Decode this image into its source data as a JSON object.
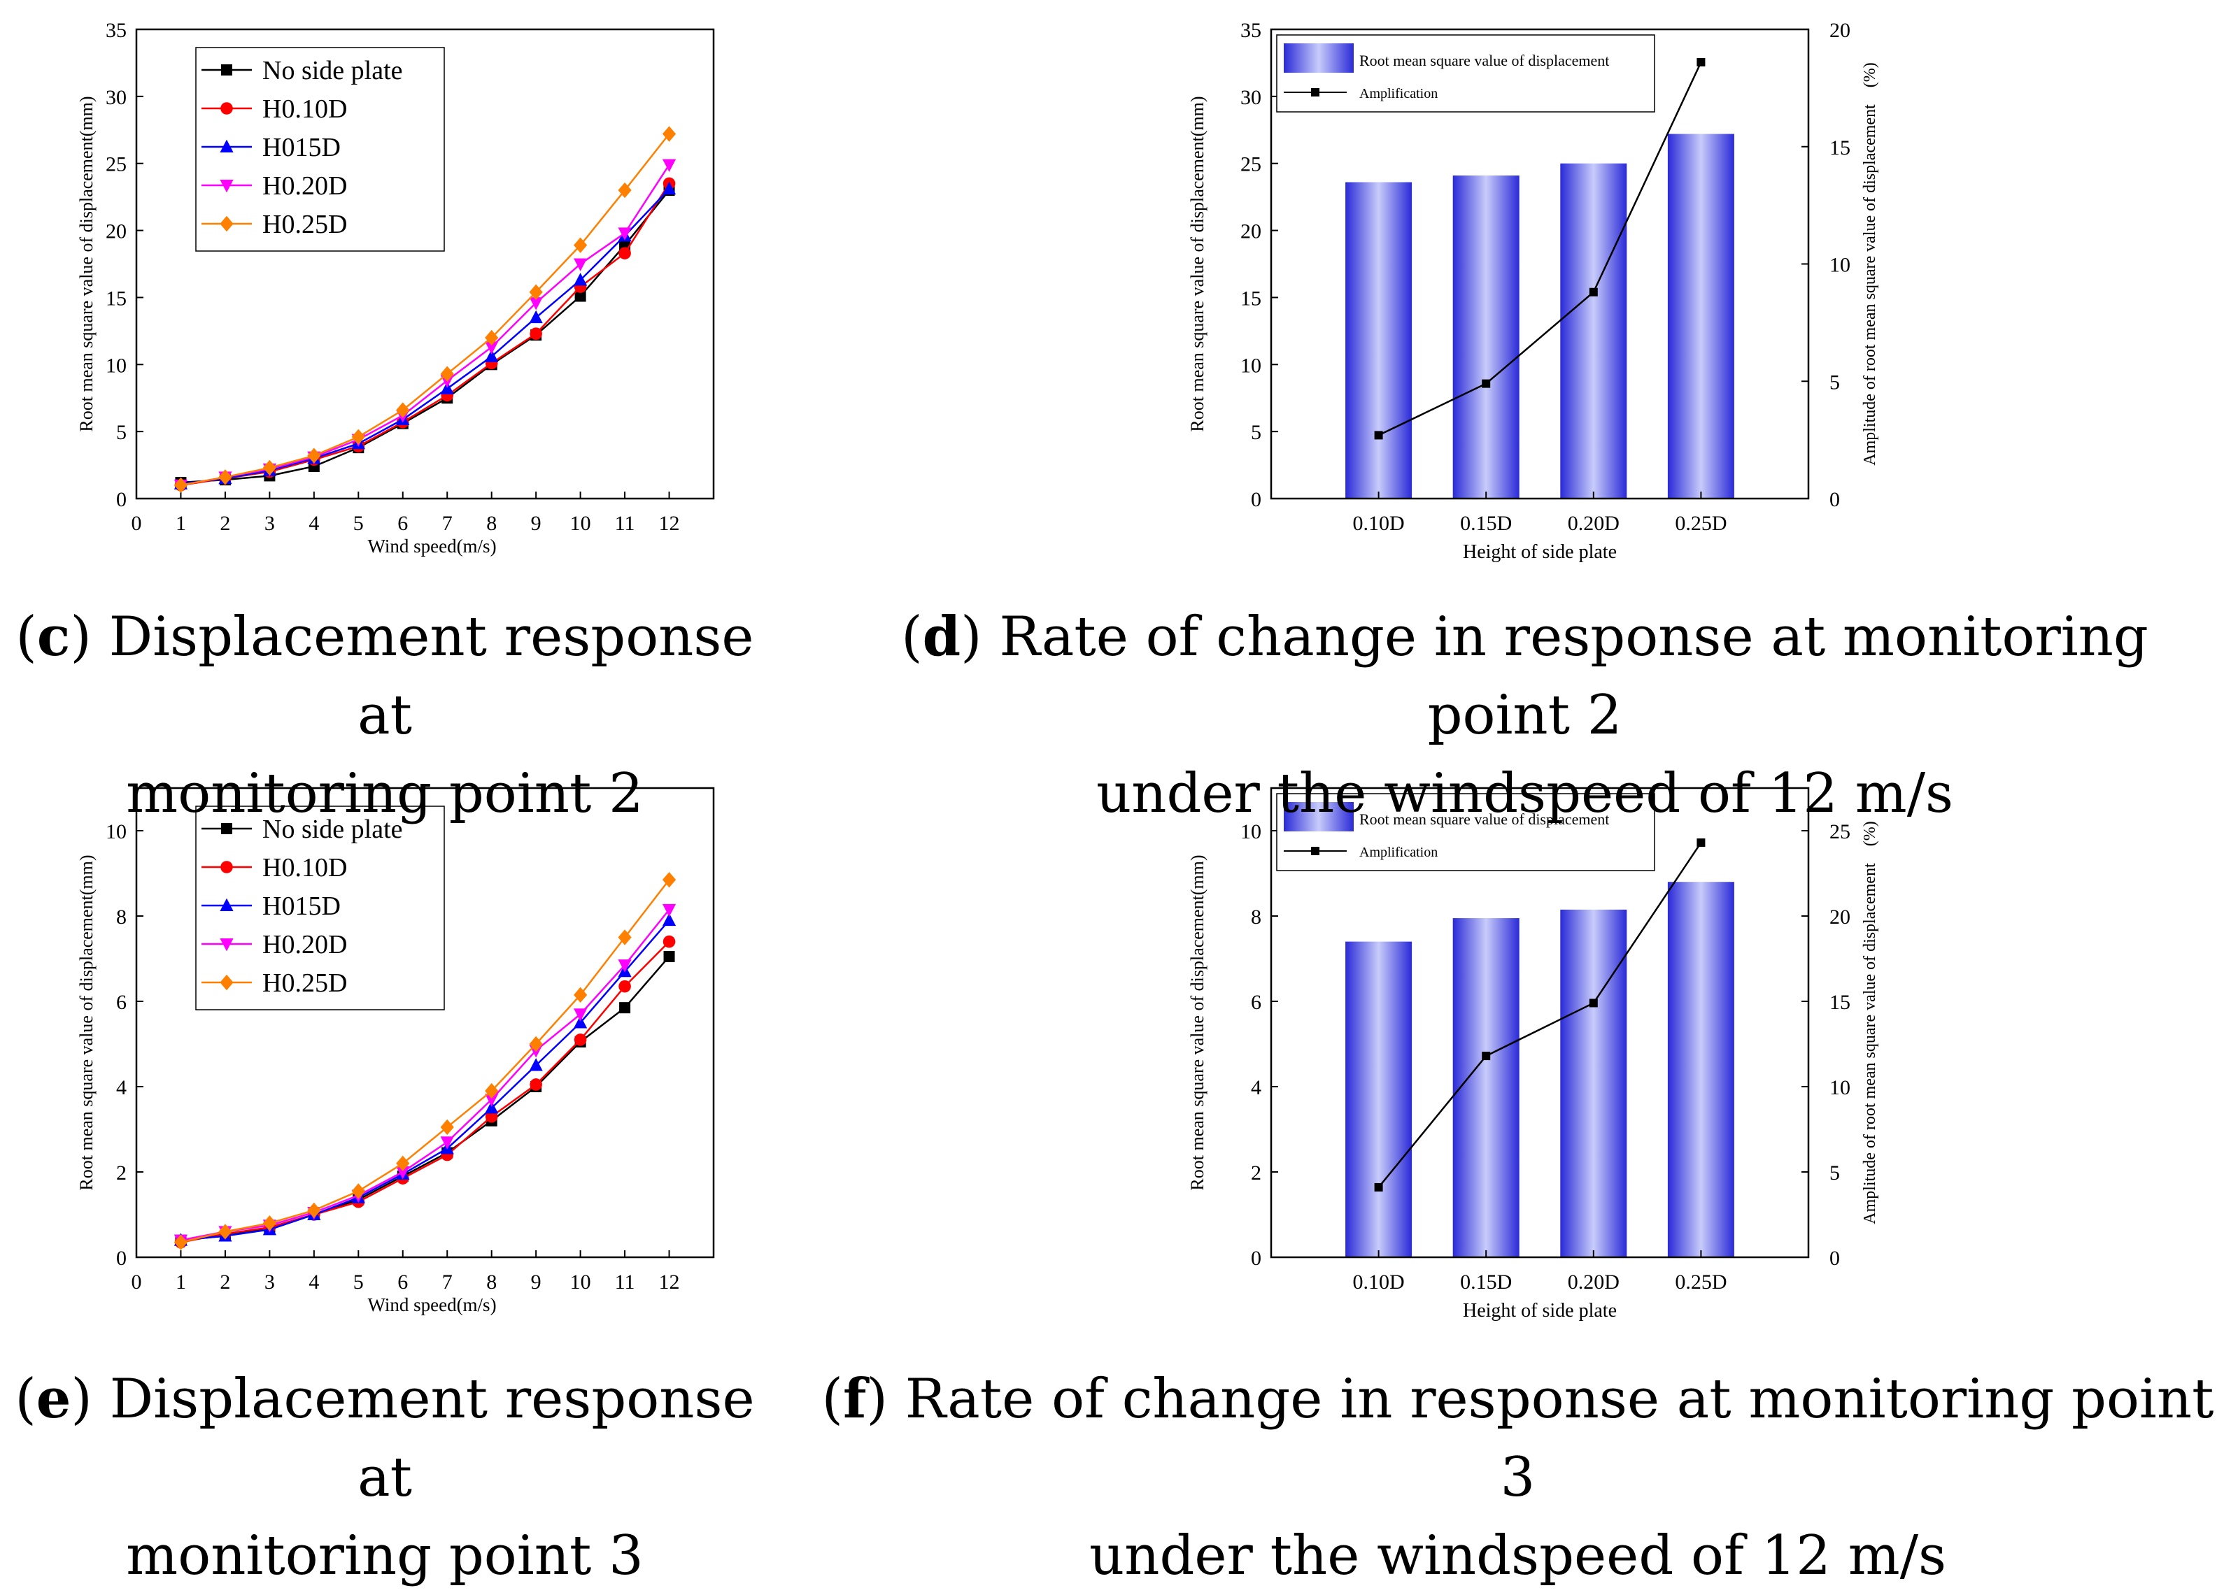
{
  "chart_data": [
    {
      "id": "c",
      "type": "line",
      "xlabel": "Wind speed(m/s)",
      "ylabel": "Root mean square value of displacement(mm)",
      "xlim": [
        0,
        13
      ],
      "ylim": [
        0,
        35
      ],
      "x_ticks": [
        0,
        1,
        2,
        3,
        4,
        5,
        6,
        7,
        8,
        9,
        10,
        11,
        12
      ],
      "y_ticks": [
        0,
        5,
        10,
        15,
        20,
        25,
        30,
        35
      ],
      "x": [
        1,
        2,
        3,
        4,
        5,
        6,
        7,
        8,
        9,
        10,
        11,
        12
      ],
      "legend_position": "top-left",
      "series": [
        {
          "name": "No side plate",
          "color": "#000000",
          "marker": "square",
          "values": [
            1.2,
            1.4,
            1.7,
            2.4,
            3.8,
            5.6,
            7.5,
            10.0,
            12.2,
            15.1,
            18.9,
            23.0
          ]
        },
        {
          "name": "H0.10D",
          "color": "#ff0000",
          "marker": "circle",
          "values": [
            1.0,
            1.5,
            2.0,
            2.9,
            3.9,
            5.7,
            7.7,
            10.1,
            12.3,
            15.8,
            18.3,
            23.5
          ]
        },
        {
          "name": "H015D",
          "color": "#0000ff",
          "marker": "triangle-up",
          "values": [
            1.1,
            1.5,
            2.1,
            3.0,
            4.1,
            5.9,
            8.2,
            10.6,
            13.5,
            16.3,
            19.6,
            23.1
          ]
        },
        {
          "name": "H0.20D",
          "color": "#ff00ff",
          "marker": "triangle-down",
          "values": [
            1.0,
            1.6,
            2.2,
            3.1,
            4.4,
            6.2,
            8.8,
            11.3,
            14.6,
            17.5,
            19.8,
            24.9
          ]
        },
        {
          "name": "H0.25D",
          "color": "#ff8000",
          "marker": "diamond",
          "values": [
            1.0,
            1.6,
            2.3,
            3.2,
            4.6,
            6.6,
            9.3,
            12.0,
            15.4,
            18.9,
            23.0,
            27.2
          ]
        }
      ]
    },
    {
      "id": "d",
      "type": "bar",
      "xlabel": "Height of side plate",
      "ylabel": "Root mean square value of displacement(mm)",
      "y2label": "Amplitude of root mean square value of displacement　(%)",
      "categories": [
        "0.10D",
        "0.15D",
        "0.20D",
        "0.25D"
      ],
      "ylim": [
        0,
        35
      ],
      "y_ticks": [
        0,
        5,
        10,
        15,
        20,
        25,
        30,
        35
      ],
      "y2lim": [
        0,
        20
      ],
      "y2_ticks": [
        0,
        5,
        10,
        15,
        20
      ],
      "legend_position": "top-left",
      "series": [
        {
          "name": "Root mean square value of displacement",
          "kind": "bar",
          "axis": "left",
          "color": "#3a3adf",
          "values": [
            23.6,
            24.1,
            25.0,
            27.2
          ]
        },
        {
          "name": "Amplification",
          "kind": "line",
          "axis": "right",
          "color": "#000000",
          "values": [
            2.7,
            4.9,
            8.8,
            18.6
          ]
        }
      ]
    },
    {
      "id": "e",
      "type": "line",
      "xlabel": "Wind speed(m/s)",
      "ylabel": "Root mean square value of displacement(mm)",
      "xlim": [
        0,
        13
      ],
      "ylim": [
        0,
        11
      ],
      "x_ticks": [
        0,
        1,
        2,
        3,
        4,
        5,
        6,
        7,
        8,
        9,
        10,
        11,
        12
      ],
      "y_ticks": [
        0,
        2,
        4,
        6,
        8,
        10
      ],
      "x": [
        1,
        2,
        3,
        4,
        5,
        6,
        7,
        8,
        9,
        10,
        11,
        12
      ],
      "legend_position": "top-left",
      "series": [
        {
          "name": "No side plate",
          "color": "#000000",
          "marker": "square",
          "values": [
            0.4,
            0.5,
            0.7,
            1.0,
            1.35,
            1.9,
            2.45,
            3.2,
            4.0,
            5.05,
            5.85,
            7.05
          ]
        },
        {
          "name": "H0.10D",
          "color": "#ff0000",
          "marker": "circle",
          "values": [
            0.35,
            0.55,
            0.7,
            1.0,
            1.3,
            1.85,
            2.4,
            3.3,
            4.05,
            5.1,
            6.35,
            7.4
          ]
        },
        {
          "name": "H015D",
          "color": "#0000ff",
          "marker": "triangle-up",
          "values": [
            0.4,
            0.5,
            0.65,
            1.0,
            1.4,
            1.95,
            2.55,
            3.5,
            4.5,
            5.5,
            6.7,
            7.9
          ]
        },
        {
          "name": "H0.20D",
          "color": "#ff00ff",
          "marker": "triangle-down",
          "values": [
            0.4,
            0.6,
            0.75,
            1.05,
            1.45,
            2.0,
            2.7,
            3.7,
            4.85,
            5.7,
            6.85,
            8.15
          ]
        },
        {
          "name": "H0.25D",
          "color": "#ff8000",
          "marker": "diamond",
          "values": [
            0.35,
            0.6,
            0.8,
            1.1,
            1.55,
            2.2,
            3.05,
            3.9,
            5.0,
            6.15,
            7.5,
            8.85
          ]
        }
      ]
    },
    {
      "id": "f",
      "type": "bar",
      "xlabel": "Height of side plate",
      "ylabel": "Root mean square value of displacement(mm)",
      "y2label": "Amplitude of root mean square value of displacement　(%)",
      "categories": [
        "0.10D",
        "0.15D",
        "0.20D",
        "0.25D"
      ],
      "ylim": [
        0,
        11
      ],
      "y_ticks": [
        0,
        2,
        4,
        6,
        8,
        10
      ],
      "y2lim": [
        0,
        27.5
      ],
      "y2_ticks": [
        0,
        5,
        10,
        15,
        20,
        25
      ],
      "legend_position": "top-left",
      "series": [
        {
          "name": "Root mean square value of displacement",
          "kind": "bar",
          "axis": "left",
          "color": "#3a3adf",
          "values": [
            7.4,
            7.95,
            8.15,
            8.8
          ]
        },
        {
          "name": "Amplification",
          "kind": "line",
          "axis": "right",
          "color": "#000000",
          "values": [
            4.1,
            11.8,
            14.9,
            24.3
          ]
        }
      ]
    }
  ],
  "captions": [
    {
      "letter": "c",
      "text1": ") Displacement response at",
      "text2": "monitoring point 2"
    },
    {
      "letter": "d",
      "text1": ") Rate of change in response at monitoring point 2",
      "text2": "under the windspeed of 12 m/s"
    },
    {
      "letter": "e",
      "text1": ") Displacement response at",
      "text2": "monitoring point 3"
    },
    {
      "letter": "f",
      "text1": ") Rate of change in response at monitoring point 3",
      "text2": "under the windspeed of 12 m/s"
    }
  ]
}
